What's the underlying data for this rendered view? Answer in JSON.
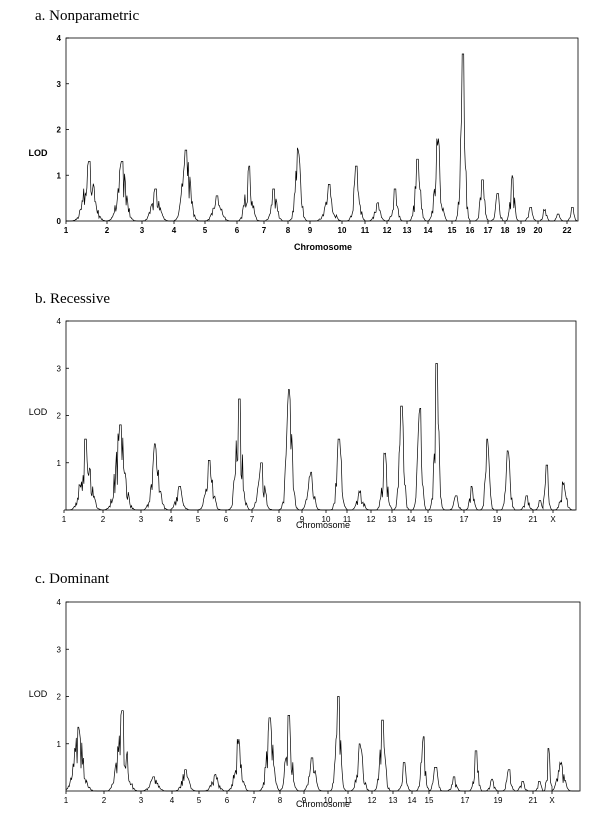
{
  "panels": [
    {
      "title": "a.  Nonparametric"
    },
    {
      "title": "b. Recessive"
    },
    {
      "title": "c. Dominant"
    }
  ],
  "chart_data": [
    {
      "type": "line",
      "title": "a.  Nonparametric",
      "xlabel": "Chromosome",
      "ylabel": "LOD",
      "ylim": [
        0,
        4
      ],
      "yticks": [
        "0",
        "1",
        "2",
        "3",
        "4"
      ],
      "chromosomes": [
        "1",
        "2",
        "3",
        "4",
        "5",
        "6",
        "7",
        "8",
        "9",
        "10",
        "11",
        "12",
        "13",
        "14",
        "15",
        "16",
        "17",
        "18",
        "19",
        "20",
        "21",
        "22"
      ],
      "xtick_labels": [
        "1",
        "2",
        "3",
        "4",
        "5",
        "6",
        "7",
        "8",
        "9",
        "10",
        "11",
        "12",
        "13",
        "14",
        "15",
        "16",
        "17",
        "18",
        "19",
        "20",
        "22"
      ],
      "peaks": [
        {
          "chromosome": "1",
          "lod": 1.3
        },
        {
          "chromosome": "2",
          "lod": 1.3
        },
        {
          "chromosome": "3",
          "lod": 0.7
        },
        {
          "chromosome": "4",
          "lod": 1.55
        },
        {
          "chromosome": "5",
          "lod": 0.55
        },
        {
          "chromosome": "6",
          "lod": 1.2
        },
        {
          "chromosome": "7",
          "lod": 0.7
        },
        {
          "chromosome": "8",
          "lod": 1.6
        },
        {
          "chromosome": "9",
          "lod": 0.8
        },
        {
          "chromosome": "10",
          "lod": 1.2
        },
        {
          "chromosome": "11",
          "lod": 0.4
        },
        {
          "chromosome": "12",
          "lod": 0.7
        },
        {
          "chromosome": "13",
          "lod": 1.35
        },
        {
          "chromosome": "14",
          "lod": 1.8
        },
        {
          "chromosome": "15",
          "lod": 3.65
        },
        {
          "chromosome": "16",
          "lod": 0.9
        },
        {
          "chromosome": "17",
          "lod": 0.6
        },
        {
          "chromosome": "18",
          "lod": 1.0
        },
        {
          "chromosome": "19",
          "lod": 0.3
        },
        {
          "chromosome": "20",
          "lod": 0.25
        },
        {
          "chromosome": "21",
          "lod": 0.15
        },
        {
          "chromosome": "22",
          "lod": 0.3
        }
      ]
    },
    {
      "type": "line",
      "title": "b. Recessive",
      "xlabel": "Chromosome",
      "ylabel": "LOD",
      "ylim": [
        0,
        4
      ],
      "yticks": [
        "1",
        "2",
        "3",
        "4"
      ],
      "chromosomes": [
        "1",
        "2",
        "3",
        "4",
        "5",
        "6",
        "7",
        "8",
        "9",
        "10",
        "11",
        "12",
        "13",
        "14",
        "15",
        "16",
        "17",
        "18",
        "19",
        "20",
        "21",
        "22",
        "X"
      ],
      "xtick_labels": [
        "1",
        "2",
        "3",
        "4",
        "5",
        "6",
        "7",
        "8",
        "9",
        "10",
        "11",
        "12",
        "13",
        "14",
        "15",
        "17",
        "19",
        "21",
        "X"
      ],
      "peaks": [
        {
          "chromosome": "1",
          "lod": 1.5
        },
        {
          "chromosome": "2",
          "lod": 1.8
        },
        {
          "chromosome": "3",
          "lod": 1.4
        },
        {
          "chromosome": "4",
          "lod": 0.5
        },
        {
          "chromosome": "5",
          "lod": 1.05
        },
        {
          "chromosome": "6",
          "lod": 2.35
        },
        {
          "chromosome": "7",
          "lod": 1.0
        },
        {
          "chromosome": "8",
          "lod": 2.55
        },
        {
          "chromosome": "9",
          "lod": 0.8
        },
        {
          "chromosome": "10",
          "lod": 1.5
        },
        {
          "chromosome": "11",
          "lod": 0.4
        },
        {
          "chromosome": "12",
          "lod": 1.2
        },
        {
          "chromosome": "13",
          "lod": 2.2
        },
        {
          "chromosome": "14",
          "lod": 2.15
        },
        {
          "chromosome": "15",
          "lod": 3.1
        },
        {
          "chromosome": "16",
          "lod": 0.3
        },
        {
          "chromosome": "17",
          "lod": 0.5
        },
        {
          "chromosome": "18",
          "lod": 1.5
        },
        {
          "chromosome": "19",
          "lod": 1.25
        },
        {
          "chromosome": "20",
          "lod": 0.3
        },
        {
          "chromosome": "21",
          "lod": 0.2
        },
        {
          "chromosome": "22",
          "lod": 0.95
        },
        {
          "chromosome": "X",
          "lod": 0.6
        }
      ]
    },
    {
      "type": "line",
      "title": "c. Dominant",
      "xlabel": "Chromosome",
      "ylabel": "LOD",
      "ylim": [
        0,
        4
      ],
      "yticks": [
        "1",
        "2",
        "3",
        "4"
      ],
      "chromosomes": [
        "1",
        "2",
        "3",
        "4",
        "5",
        "6",
        "7",
        "8",
        "9",
        "10",
        "11",
        "12",
        "13",
        "14",
        "15",
        "16",
        "17",
        "18",
        "19",
        "20",
        "21",
        "22",
        "X"
      ],
      "xtick_labels": [
        "1",
        "2",
        "3",
        "4",
        "5",
        "6",
        "7",
        "8",
        "9",
        "10",
        "11",
        "12",
        "13",
        "14",
        "15",
        "17",
        "19",
        "21",
        "X"
      ],
      "peaks": [
        {
          "chromosome": "1",
          "lod": 1.35
        },
        {
          "chromosome": "2",
          "lod": 1.7
        },
        {
          "chromosome": "3",
          "lod": 0.3
        },
        {
          "chromosome": "4",
          "lod": 0.45
        },
        {
          "chromosome": "5",
          "lod": 0.35
        },
        {
          "chromosome": "6",
          "lod": 1.1
        },
        {
          "chromosome": "7",
          "lod": 1.55
        },
        {
          "chromosome": "8",
          "lod": 1.6
        },
        {
          "chromosome": "9",
          "lod": 0.7
        },
        {
          "chromosome": "10",
          "lod": 2.0
        },
        {
          "chromosome": "11",
          "lod": 1.0
        },
        {
          "chromosome": "12",
          "lod": 1.5
        },
        {
          "chromosome": "13",
          "lod": 0.6
        },
        {
          "chromosome": "14",
          "lod": 1.15
        },
        {
          "chromosome": "15",
          "lod": 0.5
        },
        {
          "chromosome": "16",
          "lod": 0.3
        },
        {
          "chromosome": "17",
          "lod": 0.85
        },
        {
          "chromosome": "18",
          "lod": 0.25
        },
        {
          "chromosome": "19",
          "lod": 0.45
        },
        {
          "chromosome": "20",
          "lod": 0.2
        },
        {
          "chromosome": "21",
          "lod": 0.2
        },
        {
          "chromosome": "22",
          "lod": 0.9
        },
        {
          "chromosome": "X",
          "lod": 0.6
        }
      ]
    }
  ]
}
